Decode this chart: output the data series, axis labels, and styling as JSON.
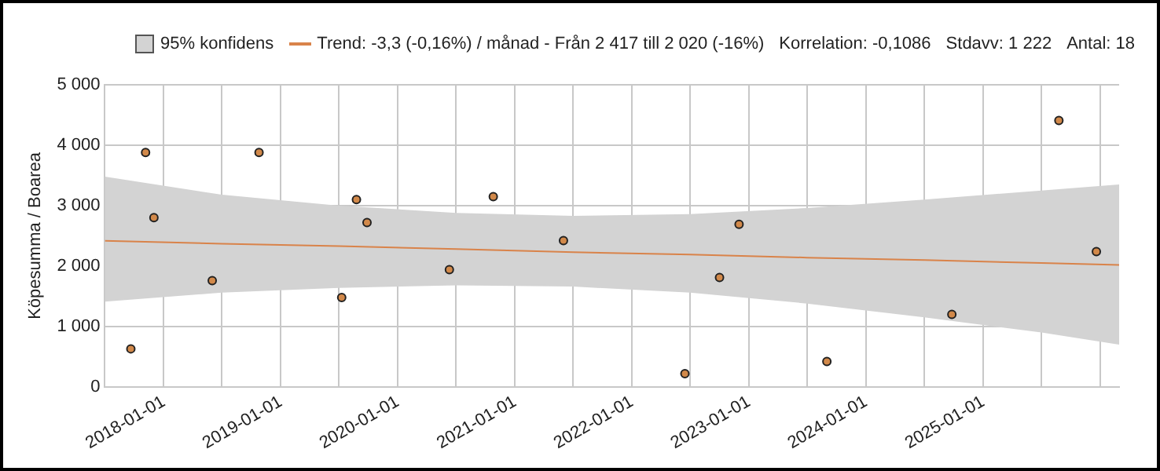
{
  "chart_data": {
    "type": "scatter",
    "ylabel": "Köpesumma / Boarea",
    "x": [
      "2017-09-20",
      "2017-11-05",
      "2017-12-01",
      "2018-06-01",
      "2018-10-25",
      "2019-07-10",
      "2019-08-25",
      "2019-09-27",
      "2020-06-10",
      "2020-10-25",
      "2021-06-01",
      "2022-06-15",
      "2022-10-01",
      "2022-12-01",
      "2023-09-01",
      "2024-09-25",
      "2025-08-25",
      "2025-12-20"
    ],
    "series": [
      {
        "color": "#d2894a",
        "values": [
          630,
          3880,
          2800,
          1760,
          3880,
          1480,
          3100,
          2720,
          1940,
          3150,
          2420,
          220,
          1810,
          2690,
          420,
          1200,
          4410,
          2240
        ]
      },
      {
        "type": "line",
        "name": "Trend: -3,3 (-0,16%) / månad  -  Från 2 417 till 2 020 (-16%)",
        "color": "#d9834a",
        "marker": "none",
        "x": [
          "2017-07-01",
          "2018-07-01",
          "2019-07-01",
          "2020-07-01",
          "2021-07-01",
          "2022-07-01",
          "2023-07-01",
          "2024-07-01",
          "2025-07-01",
          "2026-03-01"
        ],
        "values": [
          2417,
          2370,
          2330,
          2280,
          2230,
          2190,
          2140,
          2100,
          2050,
          2020
        ],
        "lower": [
          1410,
          1560,
          1640,
          1680,
          1660,
          1560,
          1380,
          1150,
          900,
          700
        ],
        "upper": [
          3480,
          3180,
          3000,
          2880,
          2830,
          2860,
          2960,
          3100,
          3250,
          3350
        ]
      }
    ],
    "annotations": [
      "95% konfidens",
      "Korrelation: -0,1086",
      "Stdavv: 1 222",
      "Antal: 18"
    ],
    "marker": "circle",
    "legend": "top",
    "grid": true,
    "xlim": [
      "2017-07-01",
      "2026-03-01"
    ],
    "xticks": [
      {
        "value": "2017-07-01",
        "label": null
      },
      {
        "value": "2018-01-01",
        "label": "2018-01-01"
      },
      {
        "value": "2018-07-01",
        "label": null
      },
      {
        "value": "2019-01-01",
        "label": "2019-01-01"
      },
      {
        "value": "2019-07-01",
        "label": null
      },
      {
        "value": "2020-01-01",
        "label": "2020-01-01"
      },
      {
        "value": "2020-07-01",
        "label": null
      },
      {
        "value": "2021-01-01",
        "label": "2021-01-01"
      },
      {
        "value": "2021-07-01",
        "label": null
      },
      {
        "value": "2022-01-01",
        "label": "2022-01-01"
      },
      {
        "value": "2022-07-01",
        "label": null
      },
      {
        "value": "2023-01-01",
        "label": "2023-01-01"
      },
      {
        "value": "2023-07-01",
        "label": null
      },
      {
        "value": "2024-01-01",
        "label": "2024-01-01"
      },
      {
        "value": "2024-07-01",
        "label": null
      },
      {
        "value": "2025-01-01",
        "label": "2025-01-01"
      },
      {
        "value": "2025-07-01",
        "label": null
      },
      {
        "value": "2026-01-01",
        "label": null
      }
    ],
    "ylim": [
      0,
      5000
    ],
    "yticks": [
      0,
      {
        "value": 1000,
        "label": "1 000"
      },
      {
        "value": 2000,
        "label": "2 000"
      },
      {
        "value": 3000,
        "label": "3 000"
      },
      {
        "value": 4000,
        "label": "4 000"
      },
      {
        "value": 5000,
        "label": "5 000"
      }
    ]
  }
}
